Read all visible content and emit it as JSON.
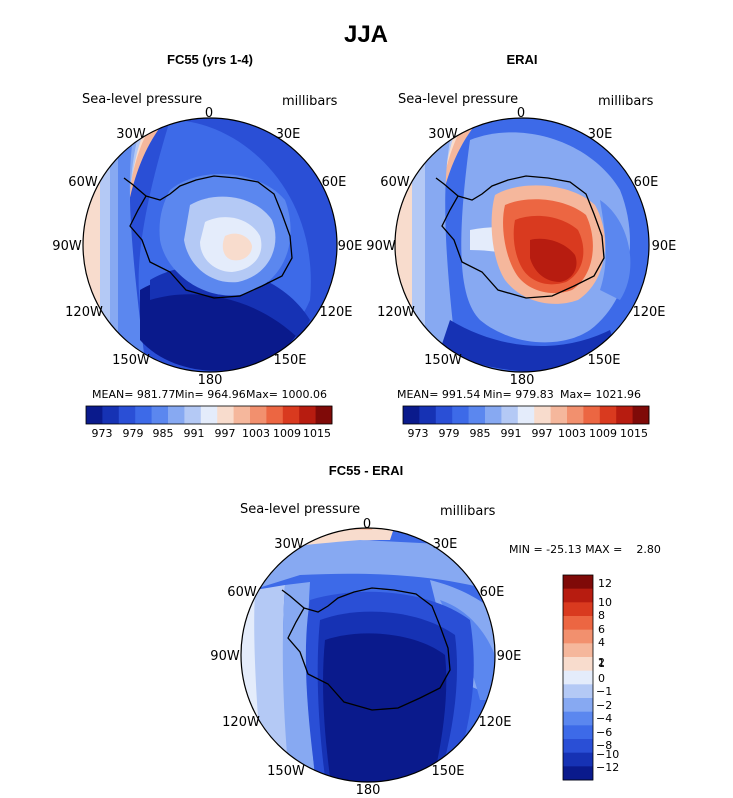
{
  "figure": {
    "title": "JJA",
    "field_label": "Sea-level pressure",
    "units_label": "millibars"
  },
  "panels": [
    {
      "title": "FC55 (yrs 1-4)",
      "lon_labels": [
        "0",
        "30E",
        "60E",
        "90E",
        "120E",
        "150E",
        "180",
        "150W",
        "120W",
        "90W",
        "60W",
        "30W"
      ],
      "stats": {
        "mean": "MEAN= 981.77",
        "min": "Min= 964.96",
        "max": "Max= 1000.06"
      },
      "colorbar_ticks": [
        "973",
        "979",
        "985",
        "991",
        "997",
        "1003",
        "1009",
        "1015"
      ]
    },
    {
      "title": "ERAI",
      "lon_labels": [
        "0",
        "30E",
        "60E",
        "90E",
        "120E",
        "150E",
        "180",
        "150W",
        "120W",
        "90W",
        "60W",
        "30W"
      ],
      "stats": {
        "mean": "MEAN= 991.54",
        "min": "Min= 979.83",
        "max": "Max= 1021.96"
      },
      "colorbar_ticks": [
        "973",
        "979",
        "985",
        "991",
        "997",
        "1003",
        "1009",
        "1015"
      ]
    },
    {
      "title": "FC55 - ERAI",
      "lon_labels": [
        "0",
        "30E",
        "60E",
        "90E",
        "120E",
        "150E",
        "180",
        "150W",
        "120W",
        "90W",
        "60W",
        "30W"
      ],
      "stats_text": "MIN = -25.13 MAX =    2.80",
      "colorbar_ticks": [
        "12",
        "10",
        "8",
        "6",
        "4",
        "2",
        "1",
        "0",
        "−1",
        "−2",
        "−4",
        "−6",
        "−8",
        "−10",
        "−12"
      ]
    }
  ],
  "colors": {
    "abs_palette": [
      "#0a1a8c",
      "#1632b4",
      "#2a4fd6",
      "#3d6ae8",
      "#5b87ef",
      "#87a9f2",
      "#b4c9f5",
      "#e4ecfb",
      "#f8dccd",
      "#f5b79c",
      "#f2906e",
      "#ec6642",
      "#d93a1f",
      "#b71c10",
      "#7f0a08"
    ],
    "diff_palette": [
      "#7f0a08",
      "#b71c10",
      "#d93a1f",
      "#ec6642",
      "#f2906e",
      "#f5b79c",
      "#f8dccd",
      "#e4ecfb",
      "#b4c9f5",
      "#87a9f2",
      "#5b87ef",
      "#3d6ae8",
      "#2a4fd6",
      "#1632b4",
      "#0a1a8c"
    ]
  }
}
